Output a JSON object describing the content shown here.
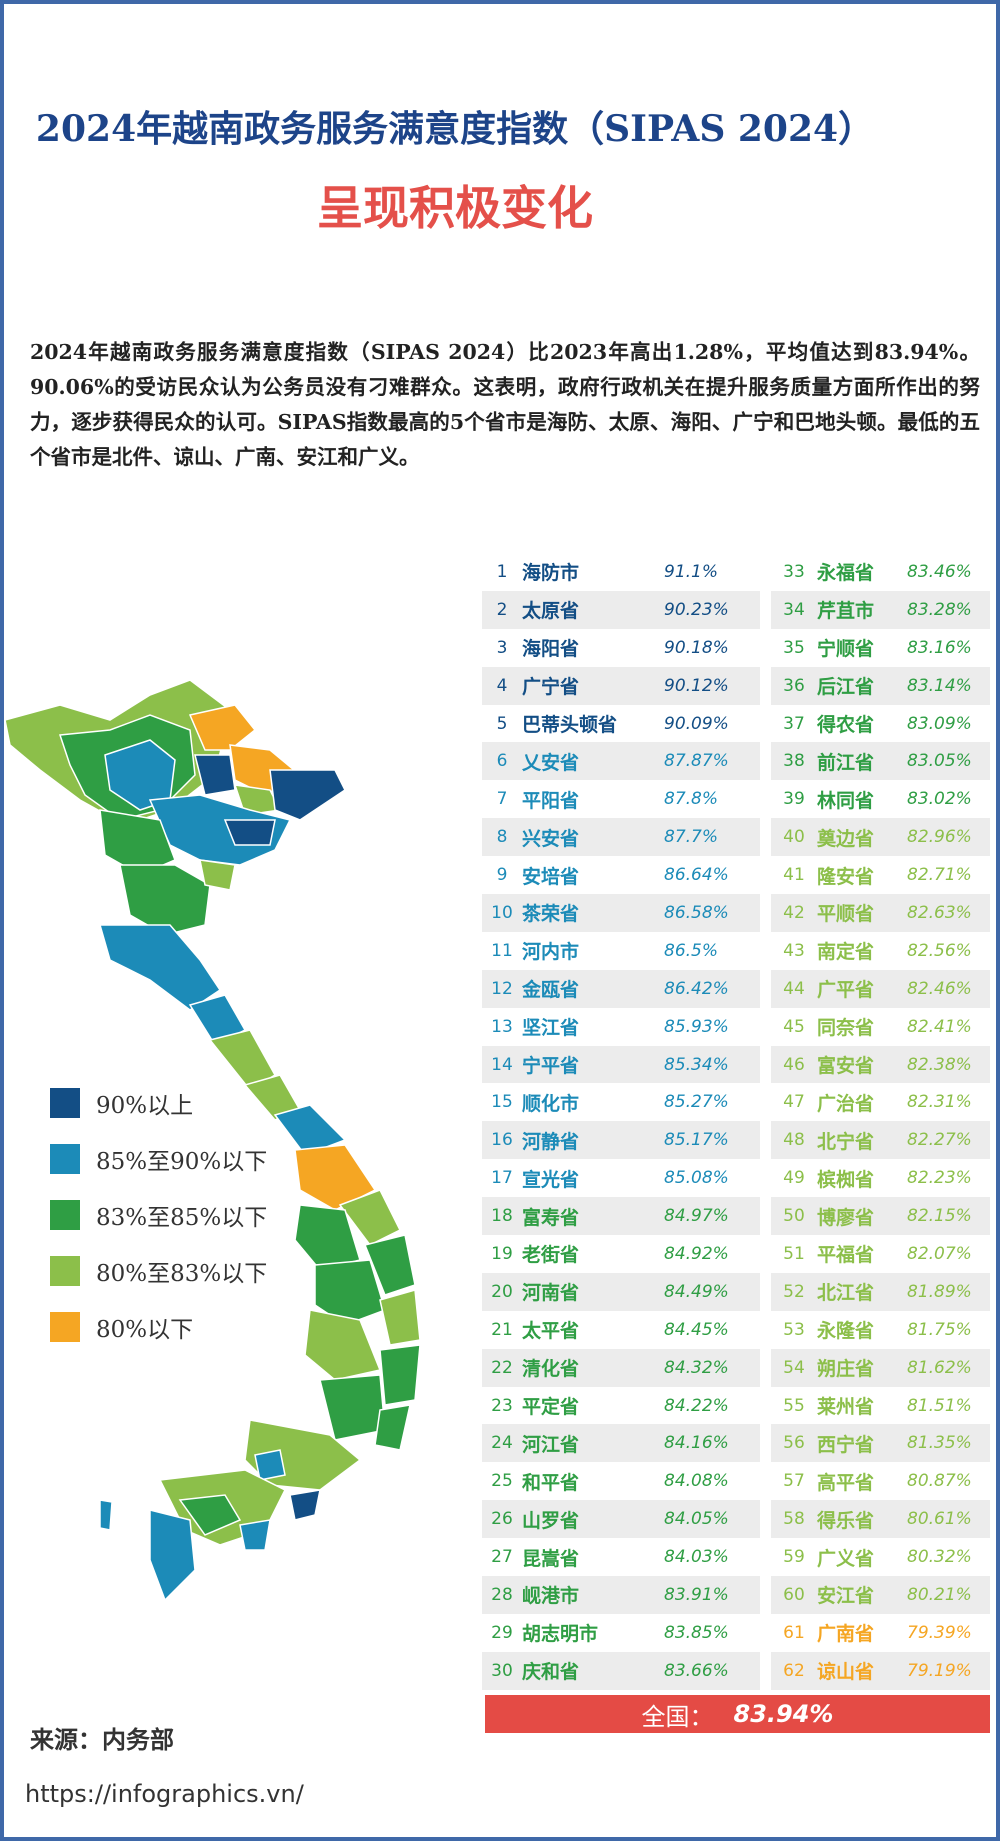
{
  "header": {
    "title": "2024年越南政务服务满意度指数（SIPAS 2024）",
    "subtitle": "呈现积极变化"
  },
  "intro": "2024年越南政务服务满意度指数（SIPAS 2024）比2023年高出1.28%，平均值达到83.94%。90.06%的受访民众认为公务员没有刁难群众。这表明，政府行政机关在提升服务质量方面所作出的努力，逐步获得民众的认可。SIPAS指数最高的5个省市是海防、太原、海阳、广宁和巴地头顿。最低的五个省市是北件、谅山、广南、安江和广义。",
  "colors": {
    "tier1": "#134e85",
    "tier2": "#1c8bb8",
    "tier3": "#2f9e44",
    "tier4": "#8cbf4a",
    "tier5": "#f5a623",
    "title_blue": "#1d4489",
    "title_red": "#e4504a",
    "total_bg": "#e44b45"
  },
  "legend": [
    {
      "label": "90%以上",
      "tier": "tier1"
    },
    {
      "label": "85%至90%以下",
      "tier": "tier2"
    },
    {
      "label": "83%至85%以下",
      "tier": "tier3"
    },
    {
      "label": "80%至83%以下",
      "tier": "tier4"
    },
    {
      "label": "80%以下",
      "tier": "tier5"
    }
  ],
  "ranking_left": [
    {
      "rank": "1",
      "name": "海防市",
      "value": "91.1%"
    },
    {
      "rank": "2",
      "name": "太原省",
      "value": "90.23%"
    },
    {
      "rank": "3",
      "name": "海阳省",
      "value": "90.18%"
    },
    {
      "rank": "4",
      "name": "广宁省",
      "value": "90.12%"
    },
    {
      "rank": "5",
      "name": "巴蒂头顿省",
      "value": "90.09%"
    },
    {
      "rank": "6",
      "name": "乂安省",
      "value": "87.87%"
    },
    {
      "rank": "7",
      "name": "平阳省",
      "value": "87.8%"
    },
    {
      "rank": "8",
      "name": "兴安省",
      "value": "87.7%"
    },
    {
      "rank": "9",
      "name": "安培省",
      "value": "86.64%"
    },
    {
      "rank": "10",
      "name": "茶荣省",
      "value": "86.58%"
    },
    {
      "rank": "11",
      "name": "河内市",
      "value": "86.5%"
    },
    {
      "rank": "12",
      "name": "金瓯省",
      "value": "86.42%"
    },
    {
      "rank": "13",
      "name": "坚江省",
      "value": "85.93%"
    },
    {
      "rank": "14",
      "name": "宁平省",
      "value": "85.34%"
    },
    {
      "rank": "15",
      "name": "顺化市",
      "value": "85.27%"
    },
    {
      "rank": "16",
      "name": "河静省",
      "value": "85.17%"
    },
    {
      "rank": "17",
      "name": "宣光省",
      "value": "85.08%"
    },
    {
      "rank": "18",
      "name": "富寿省",
      "value": "84.97%"
    },
    {
      "rank": "19",
      "name": "老街省",
      "value": "84.92%"
    },
    {
      "rank": "20",
      "name": "河南省",
      "value": "84.49%"
    },
    {
      "rank": "21",
      "name": "太平省",
      "value": "84.45%"
    },
    {
      "rank": "22",
      "name": "清化省",
      "value": "84.32%"
    },
    {
      "rank": "23",
      "name": "平定省",
      "value": "84.22%"
    },
    {
      "rank": "24",
      "name": "河江省",
      "value": "84.16%"
    },
    {
      "rank": "25",
      "name": "和平省",
      "value": "84.08%"
    },
    {
      "rank": "26",
      "name": "山罗省",
      "value": "84.05%"
    },
    {
      "rank": "27",
      "name": "昆嵩省",
      "value": "84.03%"
    },
    {
      "rank": "28",
      "name": "岘港市",
      "value": "83.91%"
    },
    {
      "rank": "29",
      "name": "胡志明市",
      "value": "83.85%"
    },
    {
      "rank": "30",
      "name": "庆和省",
      "value": "83.66%"
    }
  ],
  "ranking_right": [
    {
      "rank": "33",
      "name": "永福省",
      "value": "83.46%"
    },
    {
      "rank": "34",
      "name": "芹苴市",
      "value": "83.28%"
    },
    {
      "rank": "35",
      "name": "宁顺省",
      "value": "83.16%"
    },
    {
      "rank": "36",
      "name": "后江省",
      "value": "83.14%"
    },
    {
      "rank": "37",
      "name": "得农省",
      "value": "83.09%"
    },
    {
      "rank": "38",
      "name": "前江省",
      "value": "83.05%"
    },
    {
      "rank": "39",
      "name": "林同省",
      "value": "83.02%"
    },
    {
      "rank": "40",
      "name": "奠边省",
      "value": "82.96%"
    },
    {
      "rank": "41",
      "name": "隆安省",
      "value": "82.71%"
    },
    {
      "rank": "42",
      "name": "平顺省",
      "value": "82.63%"
    },
    {
      "rank": "43",
      "name": "南定省",
      "value": "82.56%"
    },
    {
      "rank": "44",
      "name": "广平省",
      "value": "82.46%"
    },
    {
      "rank": "45",
      "name": "同奈省",
      "value": "82.41%"
    },
    {
      "rank": "46",
      "name": "富安省",
      "value": "82.38%"
    },
    {
      "rank": "47",
      "name": "广治省",
      "value": "82.31%"
    },
    {
      "rank": "48",
      "name": "北宁省",
      "value": "82.27%"
    },
    {
      "rank": "49",
      "name": "槟椥省",
      "value": "82.23%"
    },
    {
      "rank": "50",
      "name": "博廖省",
      "value": "82.15%"
    },
    {
      "rank": "51",
      "name": "平福省",
      "value": "82.07%"
    },
    {
      "rank": "52",
      "name": "北江省",
      "value": "81.89%"
    },
    {
      "rank": "53",
      "name": "永隆省",
      "value": "81.75%"
    },
    {
      "rank": "54",
      "name": "朔庄省",
      "value": "81.62%"
    },
    {
      "rank": "55",
      "name": "莱州省",
      "value": "81.51%"
    },
    {
      "rank": "56",
      "name": "西宁省",
      "value": "81.35%"
    },
    {
      "rank": "57",
      "name": "高平省",
      "value": "80.87%"
    },
    {
      "rank": "58",
      "name": "得乐省",
      "value": "80.61%"
    },
    {
      "rank": "59",
      "name": "广义省",
      "value": "80.32%"
    },
    {
      "rank": "60",
      "name": "安江省",
      "value": "80.21%"
    },
    {
      "rank": "61",
      "name": "广南省",
      "value": "79.39%"
    },
    {
      "rank": "62",
      "name": "谅山省",
      "value": "79.19%"
    }
  ],
  "total": {
    "label": "全国：",
    "value": "83.94%"
  },
  "source": "来源：内务部",
  "url": "https://infographics.vn/"
}
